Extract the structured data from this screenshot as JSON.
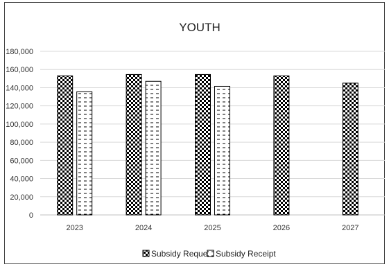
{
  "chart_data": {
    "type": "bar",
    "title": "YOUTH",
    "categories": [
      "2023",
      "2024",
      "2025",
      "2026",
      "2027"
    ],
    "series": [
      {
        "name": "Subsidy Request",
        "values": [
          153000,
          154500,
          154500,
          153000,
          145000
        ],
        "pattern": "checker"
      },
      {
        "name": "Subsidy Receipt",
        "values": [
          135500,
          147000,
          141500,
          null,
          null
        ],
        "pattern": "dashed"
      }
    ],
    "ylim": [
      0,
      180000
    ],
    "yticks": [
      "0",
      "20,000",
      "40,000",
      "60,000",
      "80,000",
      "100,000",
      "120,000",
      "140,000",
      "160,000",
      "180,000"
    ],
    "ytick_values": [
      0,
      20000,
      40000,
      60000,
      80000,
      100000,
      120000,
      140000,
      160000,
      180000
    ],
    "grid": true,
    "legend_position": "bottom"
  }
}
